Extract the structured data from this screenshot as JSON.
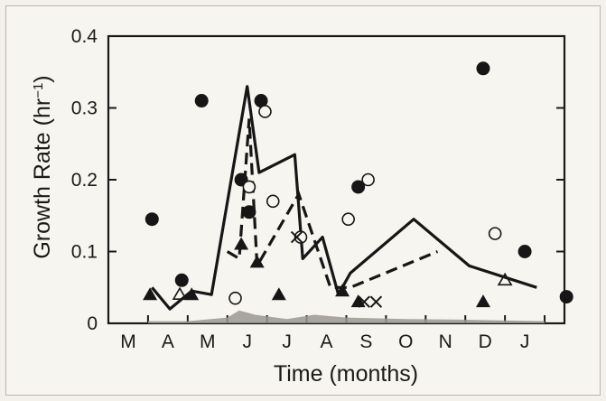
{
  "chart_data": {
    "type": "scatter",
    "xlabel": "Time (months)",
    "ylabel": "Growth Rate (hr",
    "ylabel_sup": "−1",
    "ylabel_close": ")",
    "categories": [
      "M",
      "A",
      "M",
      "J",
      "J",
      "A",
      "S",
      "O",
      "N",
      "D",
      "J"
    ],
    "yticks": [
      "0",
      "0.1",
      "0.2",
      "0.3",
      "0.4"
    ],
    "ylim": [
      0,
      0.4
    ],
    "xlim": [
      0,
      11.5
    ],
    "grid": false,
    "series": [
      {
        "style": "solid-line",
        "points": [
          [
            1.1,
            0.05
          ],
          [
            1.55,
            0.02
          ],
          [
            2.1,
            0.045
          ],
          [
            2.6,
            0.04
          ],
          [
            3.5,
            0.33
          ],
          [
            3.8,
            0.21
          ],
          [
            4.7,
            0.235
          ],
          [
            4.9,
            0.09
          ],
          [
            5.4,
            0.12
          ],
          [
            5.8,
            0.04
          ],
          [
            6.1,
            0.07
          ],
          [
            7.7,
            0.145
          ],
          [
            9.1,
            0.08
          ],
          [
            10.8,
            0.05
          ]
        ]
      },
      {
        "style": "dashed-line",
        "points": [
          [
            3.0,
            0.1
          ],
          [
            3.3,
            0.09
          ],
          [
            3.55,
            0.285
          ],
          [
            3.75,
            0.08
          ],
          [
            4.8,
            0.18
          ],
          [
            5.6,
            0.05
          ],
          [
            6.1,
            0.05
          ],
          [
            8.3,
            0.1
          ]
        ]
      },
      {
        "style": "filled-circle",
        "points": [
          [
            1.1,
            0.145
          ],
          [
            1.85,
            0.06
          ],
          [
            2.35,
            0.31
          ],
          [
            3.35,
            0.2
          ],
          [
            3.55,
            0.155
          ],
          [
            3.85,
            0.31
          ],
          [
            6.3,
            0.19
          ],
          [
            9.45,
            0.355
          ],
          [
            10.5,
            0.1
          ],
          [
            11.55,
            0.037
          ]
        ]
      },
      {
        "style": "open-circle",
        "points": [
          [
            3.2,
            0.035
          ],
          [
            3.55,
            0.19
          ],
          [
            3.95,
            0.295
          ],
          [
            4.15,
            0.17
          ],
          [
            4.85,
            0.12
          ],
          [
            6.05,
            0.145
          ],
          [
            6.55,
            0.2
          ],
          [
            9.75,
            0.125
          ]
        ]
      },
      {
        "style": "filled-triangle",
        "points": [
          [
            1.05,
            0.04
          ],
          [
            2.1,
            0.04
          ],
          [
            3.35,
            0.11
          ],
          [
            3.75,
            0.085
          ],
          [
            4.3,
            0.04
          ],
          [
            5.9,
            0.045
          ],
          [
            6.3,
            0.03
          ],
          [
            9.45,
            0.03
          ]
        ]
      },
      {
        "style": "open-triangle",
        "points": [
          [
            1.8,
            0.04
          ],
          [
            10.0,
            0.06
          ]
        ]
      },
      {
        "style": "cross",
        "points": [
          [
            4.75,
            0.12
          ],
          [
            6.45,
            0.03
          ],
          [
            6.75,
            0.03
          ]
        ]
      },
      {
        "style": "shaded-area",
        "points": [
          [
            1.0,
            0.003
          ],
          [
            2.0,
            0.003
          ],
          [
            3.0,
            0.008
          ],
          [
            3.3,
            0.018
          ],
          [
            3.7,
            0.012
          ],
          [
            4.5,
            0.006
          ],
          [
            5.2,
            0.012
          ],
          [
            6.0,
            0.008
          ],
          [
            7.5,
            0.006
          ],
          [
            9.0,
            0.005
          ],
          [
            11.0,
            0.003
          ]
        ]
      }
    ]
  }
}
